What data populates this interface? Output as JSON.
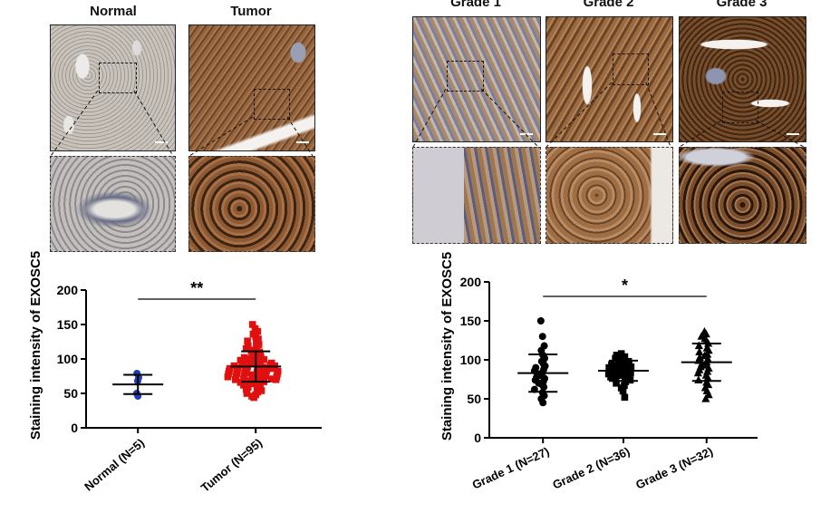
{
  "figure_a": {
    "columns": [
      "Normal",
      "Tumor"
    ]
  },
  "figure_b": {
    "columns": [
      "Grade 1",
      "Grade 2",
      "Grade 3"
    ]
  },
  "colors": {
    "normal_tissue": "#b9b2aa",
    "tumor_tissue": "#8a5a34",
    "normal_points": "#1f3fb0",
    "tumor_points": "#e01010",
    "grade_points": "#000000"
  },
  "chart_data": [
    {
      "type": "scatter",
      "ylabel": "Staining intensity of EXOSC5",
      "ylim": [
        0,
        200
      ],
      "yticks": [
        0,
        50,
        100,
        150,
        200
      ],
      "categories": [
        "Normal (N=5)",
        "Tumor (N=95)"
      ],
      "significance": "**",
      "series": [
        {
          "name": "Normal (N=5)",
          "marker": "circle",
          "mean": 63,
          "sd": 14,
          "values": [
            50,
            68,
            73,
            79,
            46
          ]
        },
        {
          "name": "Tumor (N=95)",
          "marker": "square",
          "mean": 89,
          "sd": 22,
          "values": [
            150,
            144,
            140,
            136,
            132,
            129,
            126,
            123,
            121,
            119,
            117,
            115,
            113,
            112,
            110,
            109,
            107,
            106,
            105,
            104,
            103,
            102,
            101,
            100,
            99,
            98,
            97,
            96,
            95,
            95,
            94,
            93,
            93,
            92,
            91,
            91,
            90,
            90,
            89,
            89,
            88,
            88,
            87,
            87,
            86,
            86,
            85,
            85,
            84,
            84,
            83,
            83,
            82,
            82,
            81,
            81,
            80,
            80,
            79,
            79,
            78,
            78,
            77,
            77,
            76,
            76,
            75,
            75,
            74,
            74,
            73,
            73,
            72,
            72,
            71,
            70,
            70,
            69,
            68,
            67,
            66,
            65,
            64,
            63,
            62,
            60,
            59,
            57,
            56,
            54,
            52,
            50,
            48,
            46,
            44
          ]
        }
      ]
    },
    {
      "type": "scatter",
      "ylabel": "Staining intensity of EXOSC5",
      "ylim": [
        0,
        200
      ],
      "yticks": [
        0,
        50,
        100,
        150,
        200
      ],
      "categories": [
        "Grade 1 (N=27)",
        "Grade 2 (N=36)",
        "Grade 3 (N=32)"
      ],
      "significance": "*",
      "series": [
        {
          "name": "Grade 1 (N=27)",
          "marker": "circle",
          "mean": 83,
          "sd": 24,
          "values": [
            150,
            130,
            118,
            112,
            106,
            102,
            98,
            95,
            92,
            90,
            88,
            86,
            84,
            82,
            80,
            78,
            76,
            74,
            72,
            70,
            68,
            65,
            62,
            58,
            54,
            50,
            45
          ]
        },
        {
          "name": "Grade 2 (N=36)",
          "marker": "square",
          "mean": 86,
          "sd": 13,
          "values": [
            108,
            106,
            104,
            102,
            100,
            99,
            98,
            97,
            96,
            95,
            94,
            93,
            92,
            91,
            90,
            89,
            88,
            87,
            86,
            85,
            84,
            83,
            82,
            81,
            80,
            79,
            78,
            77,
            76,
            74,
            72,
            70,
            67,
            64,
            60,
            52
          ]
        },
        {
          "name": "Grade 3 (N=32)",
          "marker": "triangle",
          "mean": 97,
          "sd": 24,
          "values": [
            136,
            133,
            130,
            127,
            124,
            121,
            118,
            115,
            112,
            110,
            107,
            105,
            103,
            101,
            99,
            97,
            95,
            93,
            91,
            89,
            87,
            85,
            83,
            80,
            77,
            74,
            71,
            68,
            64,
            60,
            55,
            50
          ]
        }
      ]
    }
  ]
}
